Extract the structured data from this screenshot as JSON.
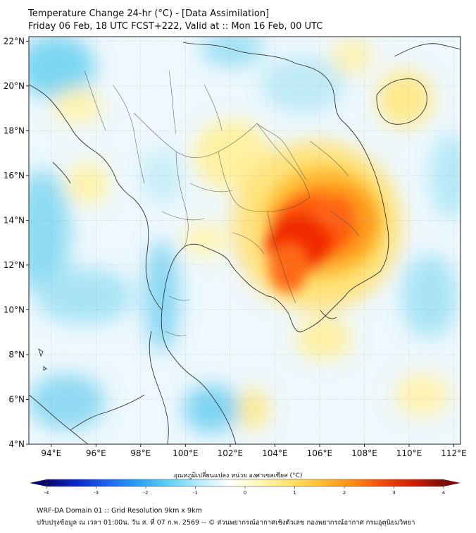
{
  "title": {
    "line1": "Temperature Change 24-hr (°C) - [Data Assimilation]",
    "line2": "Friday 06 Feb, 18 UTC FCST+222, Valid at :: Mon 16 Feb, 00 UTC"
  },
  "map": {
    "lat_range": [
      4,
      22.2
    ],
    "lon_range": [
      93,
      112.3
    ],
    "lat_ticks": [
      {
        "value": 22,
        "label": "22°N"
      },
      {
        "value": 20,
        "label": "20°N"
      },
      {
        "value": 18,
        "label": "18°N"
      },
      {
        "value": 16,
        "label": "16°N"
      },
      {
        "value": 14,
        "label": "14°N"
      },
      {
        "value": 12,
        "label": "12°N"
      },
      {
        "value": 10,
        "label": "10°N"
      },
      {
        "value": 8,
        "label": "8°N"
      },
      {
        "value": 6,
        "label": "6°N"
      },
      {
        "value": 4,
        "label": "4°N"
      }
    ],
    "lon_ticks": [
      {
        "value": 94,
        "label": "94°E"
      },
      {
        "value": 96,
        "label": "96°E"
      },
      {
        "value": 98,
        "label": "98°E"
      },
      {
        "value": 100,
        "label": "100°E"
      },
      {
        "value": 102,
        "label": "102°E"
      },
      {
        "value": 104,
        "label": "104°E"
      },
      {
        "value": 106,
        "label": "106°E"
      },
      {
        "value": 108,
        "label": "108°E"
      },
      {
        "value": 110,
        "label": "110°E"
      },
      {
        "value": 112,
        "label": "112°E"
      }
    ],
    "hot_spot_center": {
      "lon": 105.0,
      "lat": 13.3,
      "change_c": 3.0
    }
  },
  "colorbar": {
    "title": "อุณหภูมิเปลี่ยนแปลง หน่วย องศาเซลเซียส (°C)",
    "min": -4,
    "max": 4,
    "tick_labels": [
      "-4",
      "-3",
      "-2",
      "-1",
      "0",
      "1",
      "2",
      "3",
      "4"
    ],
    "colors": [
      "#08086b",
      "#0a28c8",
      "#1e64f0",
      "#28a0f5",
      "#5fd2f5",
      "#b4ecfa",
      "#ffffff",
      "#fff5b4",
      "#ffe164",
      "#ffbe32",
      "#ff8c14",
      "#f04b0a",
      "#d21e00",
      "#7d0a0a"
    ]
  },
  "footer": {
    "line1": "WRF-DA Domain 01 :: Grid Resolution 9km x 9km",
    "line2": "ปรับปรุงข้อมูล ณ เวลา 01:00น. วัน ส. ที่ 07 ก.พ. 2569 -- © ส่วนพยากรณ์อากาศเชิงตัวเลข กองพยากรณ์อากาศ กรมอุตุนิยมวิทยา"
  }
}
